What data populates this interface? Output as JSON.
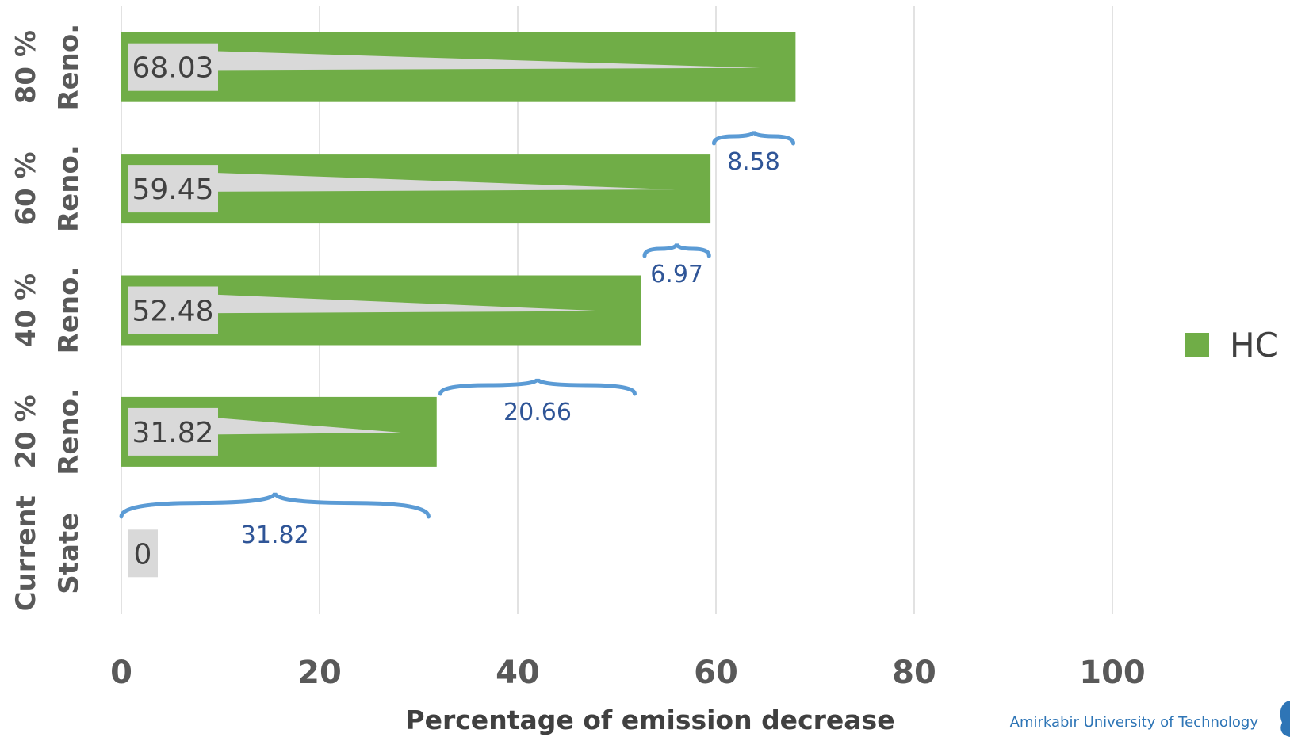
{
  "chart_data": {
    "type": "bar",
    "orientation": "horizontal",
    "categories": [
      "Current State",
      "20 % Reno.",
      "40 % Reno.",
      "60 % Reno.",
      "80 % Reno."
    ],
    "category_lines": [
      [
        "Current",
        "State"
      ],
      [
        "20 %",
        "Reno."
      ],
      [
        "40 %",
        "Reno."
      ],
      [
        "60 %",
        "Reno."
      ],
      [
        "80 %",
        "Reno."
      ]
    ],
    "series": [
      {
        "name": "HC",
        "values": [
          0,
          31.82,
          52.48,
          59.45,
          68.03
        ],
        "color": "#70ad47"
      }
    ],
    "data_labels": [
      "0",
      "31.82",
      "52.48",
      "59.45",
      "68.03"
    ],
    "increments": [
      {
        "from": 0,
        "to": 31.82,
        "label": "31.82"
      },
      {
        "from": 31.82,
        "to": 52.48,
        "label": "20.66"
      },
      {
        "from": 52.48,
        "to": 59.45,
        "label": "6.97"
      },
      {
        "from": 59.45,
        "to": 68.03,
        "label": "8.58"
      }
    ],
    "xlabel": "Percentage of emission decrease",
    "ylabel": "",
    "xlim": [
      0,
      100
    ],
    "xticks": [
      0,
      20,
      40,
      60,
      80,
      100
    ],
    "grid": "vertical",
    "legend": {
      "position": "right",
      "entries": [
        "HC"
      ]
    },
    "colors": {
      "bar": "#70ad47",
      "grid": "#d9d9d9",
      "label_box": "#d9d9d9",
      "brace": "#5b9bd5",
      "annotation": "#2f5597"
    }
  },
  "footer": {
    "institution": "Amirkabir University of Technology"
  }
}
